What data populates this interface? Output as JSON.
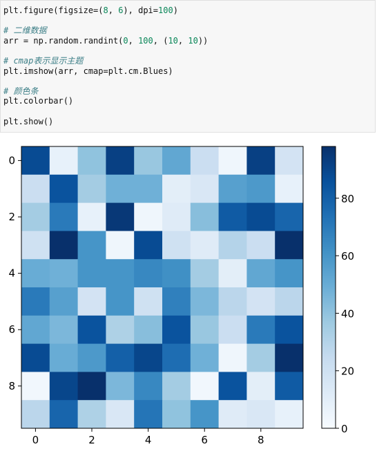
{
  "code_cell": {
    "lines": [
      {
        "text": "plt.figure(figsize=(8, 6), dpi=100)",
        "kind": "code"
      },
      {
        "text": "",
        "kind": "blank"
      },
      {
        "text": "# 二维数据",
        "kind": "comment"
      },
      {
        "text": "arr = np.random.randint(0, 100, (10, 10))",
        "kind": "code"
      },
      {
        "text": "",
        "kind": "blank"
      },
      {
        "text": "# cmap表示显示主题",
        "kind": "comment"
      },
      {
        "text": "plt.imshow(arr, cmap=plt.cm.Blues)",
        "kind": "code"
      },
      {
        "text": "",
        "kind": "blank"
      },
      {
        "text": "# 颜色条",
        "kind": "comment"
      },
      {
        "text": "plt.colorbar()",
        "kind": "code"
      },
      {
        "text": "",
        "kind": "blank"
      },
      {
        "text": "plt.show()",
        "kind": "code"
      }
    ]
  },
  "colors": {
    "cmap": [
      "#f7fbff",
      "#deebf7",
      "#c6dbef",
      "#9ecae1",
      "#6baed6",
      "#4292c6",
      "#2171b5",
      "#08519c",
      "#08306b"
    ]
  },
  "chart_data": {
    "type": "heatmap",
    "title": "",
    "xlabel": "",
    "ylabel": "",
    "x_ticks": [
      0,
      2,
      4,
      6,
      8
    ],
    "y_ticks": [
      0,
      2,
      4,
      6,
      8
    ],
    "x_tick_labels": [
      "0",
      "2",
      "4",
      "6",
      "8"
    ],
    "y_tick_labels": [
      "0",
      "2",
      "4",
      "6",
      "8"
    ],
    "colormap": "Blues",
    "colorbar": {
      "vmin": 0,
      "vmax": 98,
      "ticks": [
        0,
        20,
        40,
        60,
        80
      ],
      "tick_labels": [
        "0",
        "20",
        "40",
        "60",
        "80"
      ]
    },
    "grid": false,
    "values": [
      [
        88,
        8,
        40,
        92,
        38,
        52,
        22,
        4,
        92,
        18
      ],
      [
        22,
        85,
        35,
        48,
        48,
        10,
        15,
        55,
        58,
        8
      ],
      [
        35,
        70,
        8,
        95,
        4,
        12,
        42,
        82,
        88,
        78
      ],
      [
        20,
        98,
        60,
        4,
        88,
        20,
        12,
        30,
        22,
        98
      ],
      [
        50,
        48,
        60,
        60,
        65,
        62,
        35,
        10,
        52,
        60
      ],
      [
        70,
        55,
        18,
        60,
        20,
        68,
        45,
        28,
        18,
        28
      ],
      [
        52,
        45,
        85,
        32,
        42,
        85,
        38,
        22,
        70,
        85
      ],
      [
        88,
        50,
        58,
        80,
        90,
        75,
        48,
        4,
        35,
        98
      ],
      [
        3,
        90,
        98,
        45,
        65,
        35,
        3,
        85,
        10,
        82
      ],
      [
        28,
        78,
        32,
        15,
        72,
        40,
        60,
        12,
        15,
        8
      ]
    ]
  }
}
